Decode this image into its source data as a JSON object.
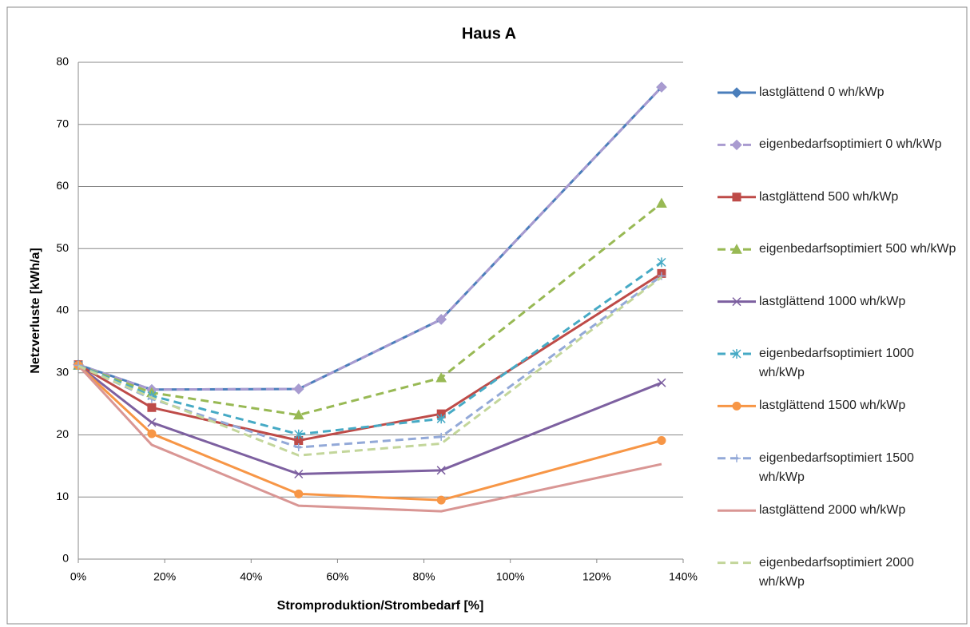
{
  "chart_data": {
    "type": "line",
    "title": "Haus A",
    "x_label": "Stromproduktion/Strombedarf [%]",
    "y_label": "Netzverluste [kWh/a]",
    "x": [
      0,
      17,
      51,
      84,
      135
    ],
    "xlim": [
      0,
      140
    ],
    "xticks": [
      {
        "value": 0,
        "label": "0%"
      },
      {
        "value": 20,
        "label": "20%"
      },
      {
        "value": 40,
        "label": "40%"
      },
      {
        "value": 60,
        "label": "60%"
      },
      {
        "value": 80,
        "label": "80%"
      },
      {
        "value": 100,
        "label": "100%"
      },
      {
        "value": 120,
        "label": "120%"
      },
      {
        "value": 140,
        "label": "140%"
      }
    ],
    "ylim": [
      0,
      80
    ],
    "yticks": [
      0,
      10,
      20,
      30,
      40,
      50,
      60,
      70,
      80
    ],
    "grid": true,
    "legend": "right",
    "series": [
      {
        "name": "lastglättend 0 wh/kWp",
        "color": "#4a7ebb",
        "dash": false,
        "marker": "diamond",
        "values": [
          31.3,
          27.3,
          27.4,
          38.6,
          76.0
        ]
      },
      {
        "name": "eigenbedarfsoptimiert 0 wh/kWp",
        "color": "#a99bd0",
        "dash": true,
        "marker": "diamond",
        "values": [
          31.3,
          27.3,
          27.4,
          38.6,
          76.0
        ]
      },
      {
        "name": "lastglättend 500 wh/kWp",
        "color": "#be4b48",
        "dash": false,
        "marker": "square",
        "values": [
          31.3,
          24.4,
          19.1,
          23.4,
          46.0
        ]
      },
      {
        "name": "eigenbedarfsoptimiert 500 wh/kWp",
        "color": "#98b954",
        "dash": true,
        "marker": "triangle",
        "values": [
          31.2,
          26.8,
          23.2,
          29.2,
          57.3
        ]
      },
      {
        "name": "lastglättend 1000 wh/kWp",
        "color": "#7d60a0",
        "dash": false,
        "marker": "x",
        "values": [
          31.2,
          22.0,
          13.7,
          14.3,
          28.4
        ]
      },
      {
        "name": "eigenbedarfsoptimiert 1000 wh/kWp",
        "color": "#46aac5",
        "dash": true,
        "marker": "asterisk",
        "values": [
          31.2,
          26.3,
          20.1,
          22.6,
          47.8
        ]
      },
      {
        "name": "lastglättend 1500 wh/kWp",
        "color": "#f79646",
        "dash": false,
        "marker": "circle",
        "values": [
          31.2,
          20.2,
          10.5,
          9.5,
          19.1
        ]
      },
      {
        "name": "eigenbedarfsoptimiert 1500 wh/kWp",
        "color": "#93a9d8",
        "dash": true,
        "marker": "plus",
        "values": [
          31.2,
          25.8,
          18.0,
          19.7,
          45.6
        ]
      },
      {
        "name": "lastglättend 2000 wh/kWp",
        "color": "#d99694",
        "dash": false,
        "marker": "none",
        "values": [
          31.2,
          18.4,
          8.6,
          7.7,
          15.3
        ]
      },
      {
        "name": "eigenbedarfsoptimiert 2000 wh/kWp",
        "color": "#c3d69b",
        "dash": true,
        "marker": "none",
        "values": [
          31.1,
          26.0,
          16.7,
          18.6,
          45.4
        ]
      }
    ]
  }
}
